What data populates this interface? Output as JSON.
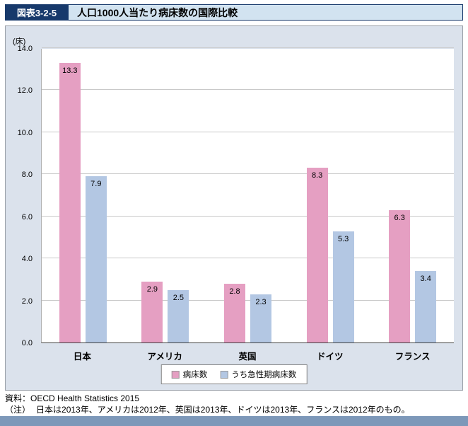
{
  "header": {
    "figure_label": "図表3-2-5",
    "title": "人口1000人当たり病床数の国際比較"
  },
  "chart_data": {
    "type": "bar",
    "title": "人口1000人当たり病床数の国際比較",
    "unit_label": "(床)",
    "categories": [
      "日本",
      "アメリカ",
      "英国",
      "ドイツ",
      "フランス"
    ],
    "series": [
      {
        "name": "病床数",
        "color": "#e59fc2",
        "values": [
          13.3,
          2.9,
          2.8,
          8.3,
          6.3
        ]
      },
      {
        "name": "うち急性期病床数",
        "color": "#b3c7e3",
        "values": [
          7.9,
          2.5,
          2.3,
          5.3,
          3.4
        ]
      }
    ],
    "ylim": [
      0,
      14
    ],
    "ytick_step": 2,
    "yticks": [
      "0.0",
      "2.0",
      "4.0",
      "6.0",
      "8.0",
      "10.0",
      "12.0",
      "14.0"
    ],
    "grid": true,
    "legend_position": "bottom"
  },
  "footer": {
    "source": "資料：OECD Health Statistics 2015",
    "note_label": "（注）",
    "note": "日本は2013年、アメリカは2012年、英国は2013年、ドイツは2013年、フランスは2012年のもの。"
  }
}
